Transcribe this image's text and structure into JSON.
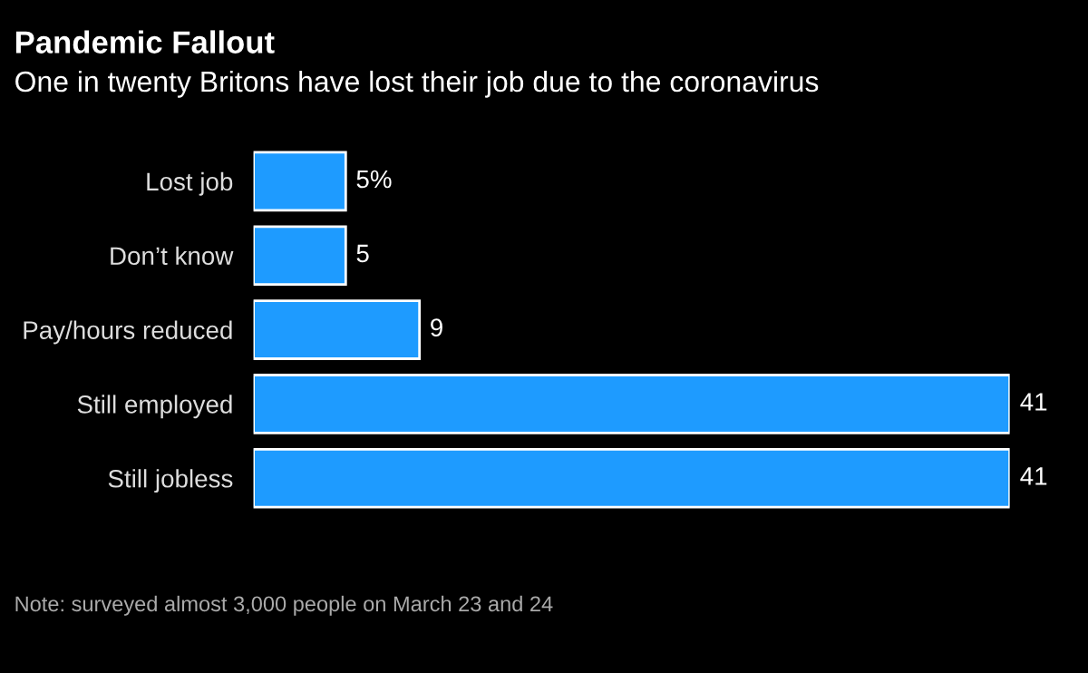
{
  "chart_data": {
    "type": "bar",
    "orientation": "horizontal",
    "title": "Pandemic Fallout",
    "subtitle": "One in twenty Britons have lost their job due to the coronavirus",
    "categories": [
      "Lost job",
      "Don’t know",
      "Pay/hours reduced",
      "Still employed",
      "Still jobless"
    ],
    "values": [
      5,
      5,
      9,
      41,
      41
    ],
    "value_labels": [
      "5%",
      "5",
      "9",
      "41",
      "41"
    ],
    "color": "#1e9bff",
    "annotations": [
      "Note: surveyed almost 3,000 people on March 23 and 24"
    ],
    "grid": false,
    "legend": false
  }
}
